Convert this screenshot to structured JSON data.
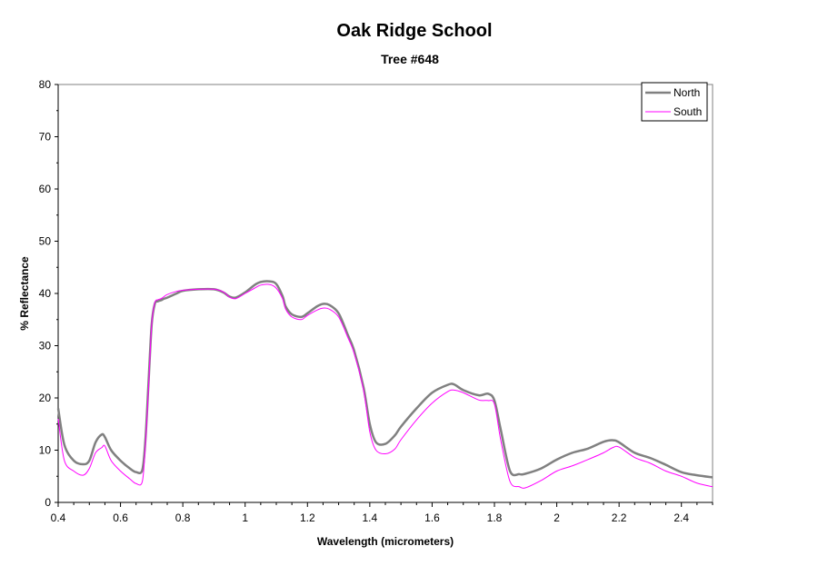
{
  "chart_data": {
    "type": "line",
    "title": "Oak Ridge School",
    "subtitle": "Tree #648",
    "xlabel": "Wavelength (micrometers)",
    "ylabel": "% Reflectance",
    "xlim": [
      0.4,
      2.5
    ],
    "ylim": [
      0,
      80
    ],
    "x_ticks": [
      "0.4",
      "0.6",
      "0.8",
      "1",
      "1.2",
      "1.4",
      "1.6",
      "1.8",
      "2",
      "2.2",
      "2.4"
    ],
    "y_ticks": [
      "0",
      "10",
      "20",
      "30",
      "40",
      "50",
      "60",
      "70",
      "80"
    ],
    "grid": false,
    "legend_position": "top-right",
    "series": [
      {
        "name": "North",
        "color": "#808080",
        "x": [
          0.4,
          0.42,
          0.45,
          0.48,
          0.5,
          0.52,
          0.54,
          0.55,
          0.57,
          0.6,
          0.63,
          0.65,
          0.67,
          0.68,
          0.69,
          0.7,
          0.71,
          0.72,
          0.73,
          0.74,
          0.75,
          0.78,
          0.8,
          0.85,
          0.9,
          0.93,
          0.95,
          0.97,
          1.0,
          1.03,
          1.05,
          1.08,
          1.1,
          1.12,
          1.13,
          1.15,
          1.18,
          1.2,
          1.23,
          1.25,
          1.27,
          1.3,
          1.33,
          1.35,
          1.38,
          1.4,
          1.42,
          1.45,
          1.48,
          1.5,
          1.55,
          1.6,
          1.65,
          1.67,
          1.7,
          1.75,
          1.78,
          1.8,
          1.82,
          1.85,
          1.88,
          1.9,
          1.95,
          2.0,
          2.05,
          2.1,
          2.15,
          2.18,
          2.2,
          2.25,
          2.3,
          2.35,
          2.4,
          2.45,
          2.5
        ],
        "y": [
          18,
          11,
          8,
          7.3,
          8,
          11.5,
          13,
          12.5,
          10,
          8,
          6.5,
          5.8,
          6.2,
          12,
          23,
          34,
          38,
          38.5,
          38.7,
          39,
          39.2,
          40,
          40.5,
          40.8,
          40.8,
          40.2,
          39.4,
          39.2,
          40.2,
          41.6,
          42.2,
          42.3,
          41.8,
          39.5,
          37.5,
          36,
          35.5,
          36.2,
          37.5,
          38,
          37.8,
          36.2,
          32,
          29,
          22,
          15,
          11.5,
          11.2,
          12.8,
          14.5,
          18,
          21,
          22.5,
          22.6,
          21.5,
          20.5,
          20.8,
          19.5,
          14,
          6,
          5.4,
          5.5,
          6.5,
          8.2,
          9.5,
          10.3,
          11.6,
          11.9,
          11.5,
          9.5,
          8.5,
          7.2,
          5.8,
          5.2,
          4.8
        ]
      },
      {
        "name": "South",
        "color": "#ff00ff",
        "x": [
          0.4,
          0.42,
          0.45,
          0.48,
          0.5,
          0.52,
          0.54,
          0.55,
          0.57,
          0.6,
          0.63,
          0.65,
          0.67,
          0.68,
          0.69,
          0.7,
          0.71,
          0.72,
          0.73,
          0.74,
          0.75,
          0.78,
          0.8,
          0.85,
          0.9,
          0.93,
          0.95,
          0.97,
          1.0,
          1.03,
          1.05,
          1.08,
          1.1,
          1.12,
          1.13,
          1.15,
          1.18,
          1.2,
          1.23,
          1.25,
          1.27,
          1.3,
          1.33,
          1.35,
          1.38,
          1.4,
          1.42,
          1.45,
          1.48,
          1.5,
          1.55,
          1.6,
          1.65,
          1.67,
          1.7,
          1.75,
          1.78,
          1.8,
          1.82,
          1.85,
          1.88,
          1.9,
          1.95,
          2.0,
          2.05,
          2.1,
          2.15,
          2.18,
          2.2,
          2.25,
          2.3,
          2.35,
          2.4,
          2.45,
          2.5
        ],
        "y": [
          16,
          8,
          6,
          5.2,
          6.5,
          9.5,
          10.5,
          10.8,
          8,
          6,
          4.5,
          3.6,
          4,
          11,
          22,
          34,
          38.2,
          38.8,
          39,
          39.4,
          39.8,
          40.4,
          40.6,
          40.8,
          40.8,
          40.3,
          39.3,
          39,
          40,
          41,
          41.6,
          41.7,
          41,
          39,
          37,
          35.5,
          35,
          35.8,
          36.8,
          37.2,
          37,
          35.5,
          31.5,
          28.5,
          21.5,
          13.5,
          10,
          9.3,
          10.2,
          12,
          15.8,
          19,
          21.2,
          21.5,
          21,
          19.6,
          19.5,
          18.8,
          12,
          4,
          3,
          2.8,
          4.2,
          6,
          7,
          8.2,
          9.5,
          10.5,
          10.6,
          8.6,
          7.5,
          6,
          5,
          3.7,
          3
        ]
      }
    ]
  }
}
